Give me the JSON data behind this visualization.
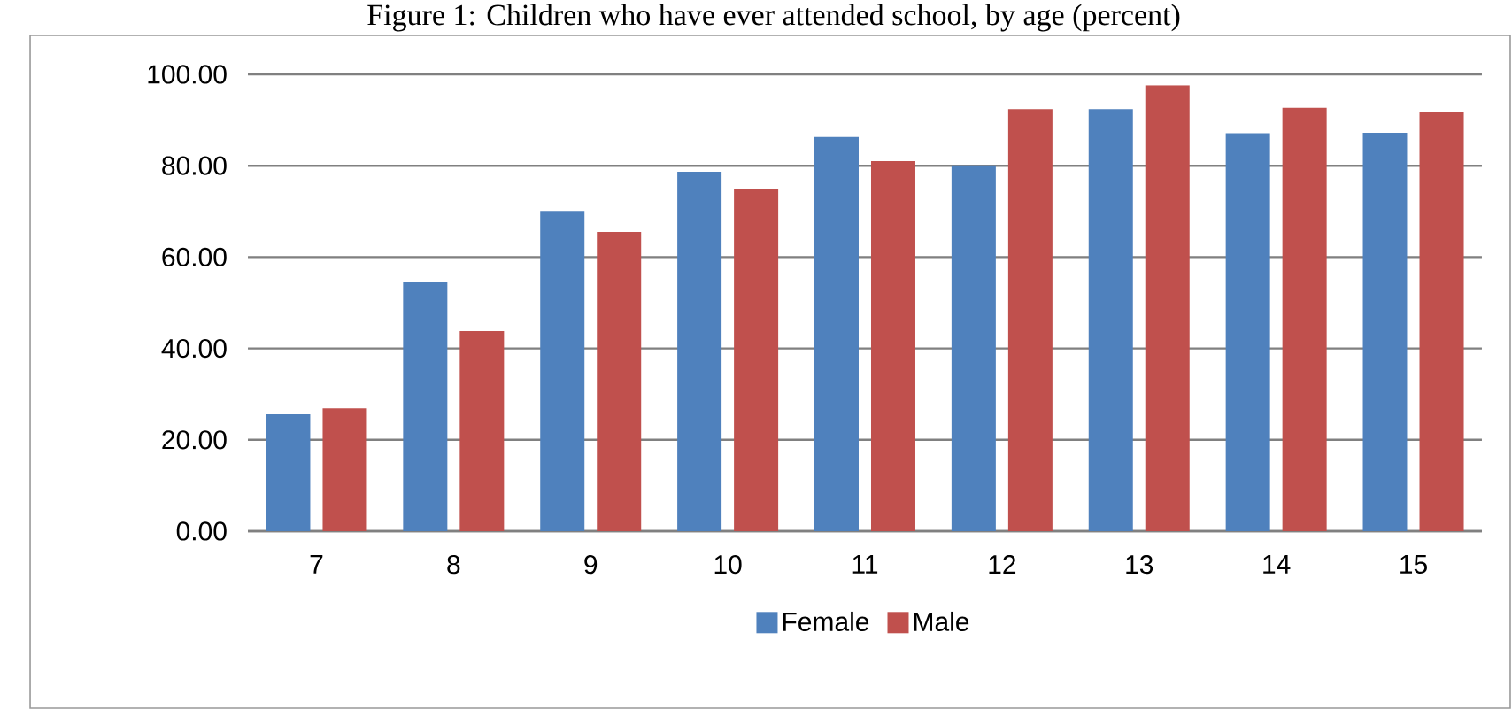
{
  "chart_data": {
    "type": "bar",
    "title": "Figure 1: Children who have ever attended school, by age (percent)",
    "categories": [
      "7",
      "8",
      "9",
      "10",
      "11",
      "12",
      "13",
      "14",
      "15"
    ],
    "series": [
      {
        "name": "Female",
        "color": "#4f81bd",
        "values": [
          25.6,
          54.5,
          70.1,
          78.7,
          86.3,
          80.1,
          92.4,
          87.1,
          87.2
        ]
      },
      {
        "name": "Male",
        "color": "#c0504d",
        "values": [
          26.9,
          43.8,
          65.5,
          74.9,
          81.0,
          92.4,
          97.6,
          92.7,
          91.7
        ]
      }
    ],
    "ylim": [
      0,
      100
    ],
    "yticks": [
      {
        "value": 0,
        "label": "0.00"
      },
      {
        "value": 20,
        "label": "20.00"
      },
      {
        "value": 40,
        "label": "40.00"
      },
      {
        "value": 60,
        "label": "60.00"
      },
      {
        "value": 80,
        "label": "80.00"
      },
      {
        "value": 100,
        "label": "100.00"
      }
    ],
    "grid": "y",
    "legend": "bottom"
  }
}
